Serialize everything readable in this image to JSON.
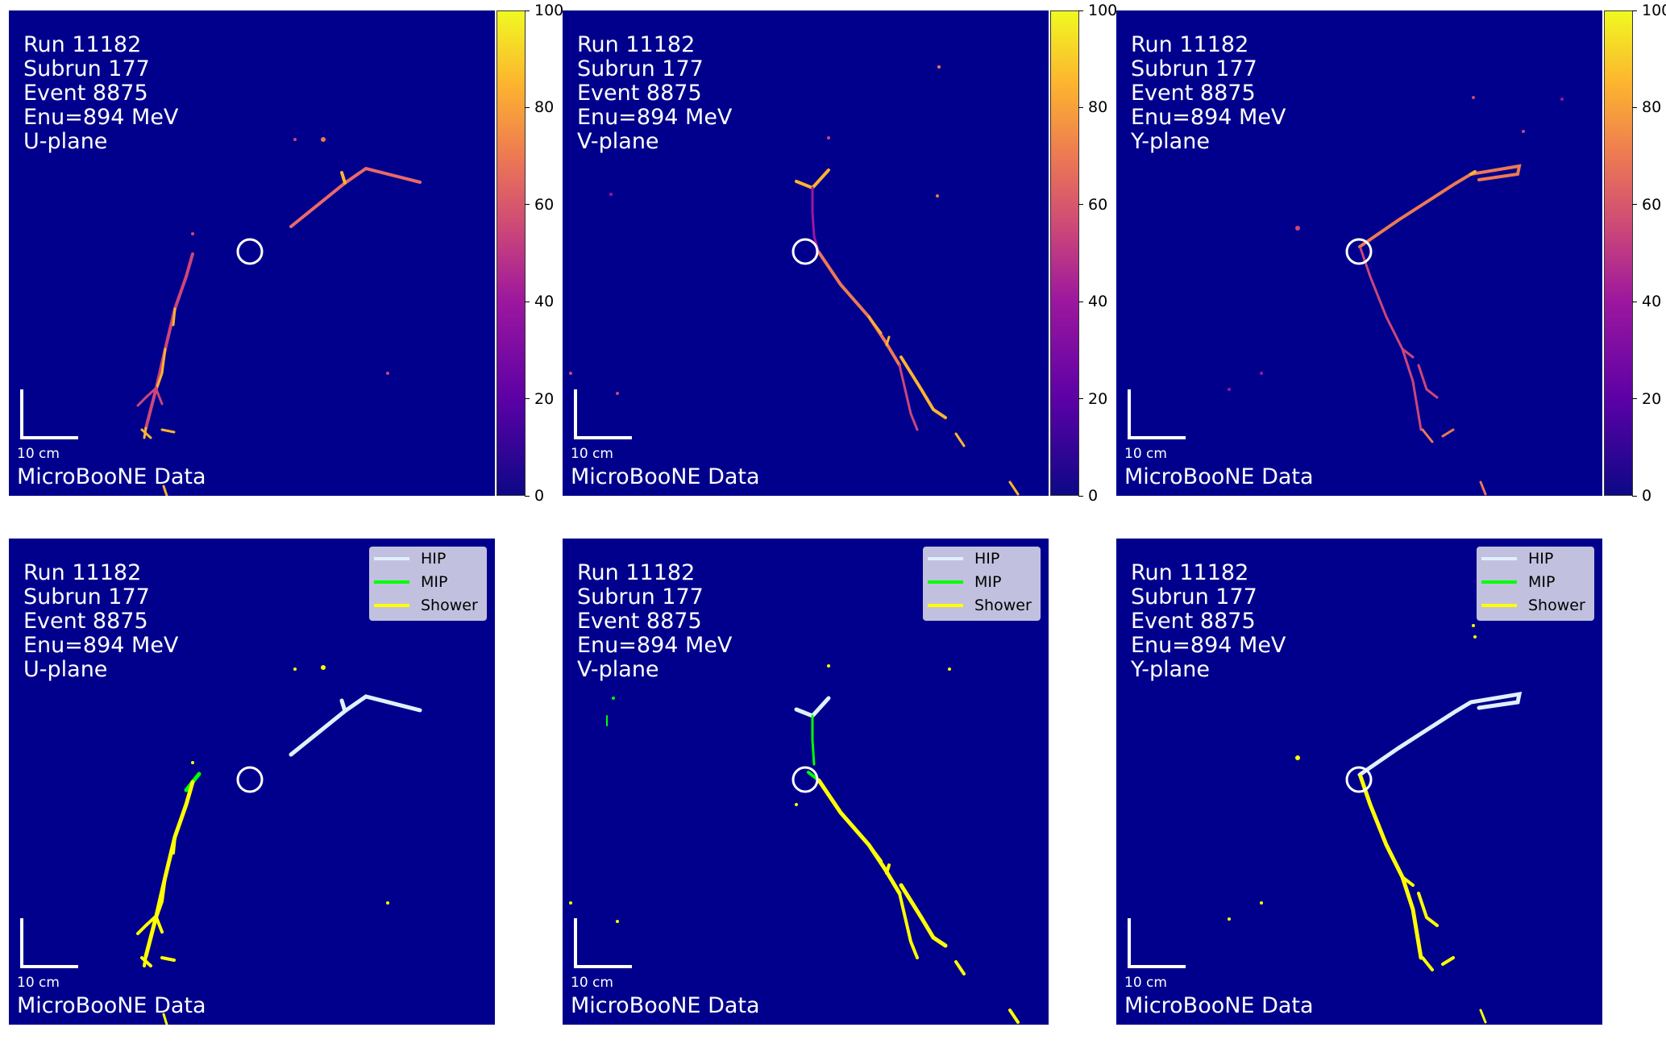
{
  "event": {
    "run": "Run 11182",
    "subrun": "Subrun 177",
    "event": "Event 8875",
    "enu": "Enu=894 MeV"
  },
  "common": {
    "scale_label": "10 cm",
    "data_label": "MicroBooNE Data"
  },
  "planes": {
    "u": "U-plane",
    "v": "V-plane",
    "y": "Y-plane"
  },
  "colorbar": {
    "ticks": [
      "100",
      "80",
      "60",
      "40",
      "20",
      "0"
    ],
    "colormap": "plasma"
  },
  "legend": {
    "items": [
      {
        "label": "HIP",
        "color": "#e0f0ff"
      },
      {
        "label": "MIP",
        "color": "#00ff00"
      },
      {
        "label": "Shower",
        "color": "#ffff00"
      }
    ]
  },
  "colors": {
    "background": "#00008c",
    "hip": "#e0f0ff",
    "mip": "#00ff00",
    "shower": "#ffff00",
    "charge_low": "#9c179e",
    "charge_high": "#fdb42f"
  }
}
